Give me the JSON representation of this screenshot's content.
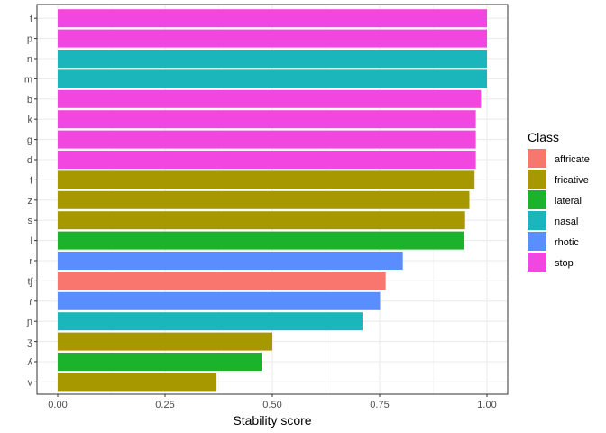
{
  "chart_data": {
    "type": "bar",
    "orientation": "horizontal",
    "xlabel": "Stability score",
    "ylabel": "",
    "xlim": [
      0,
      1
    ],
    "x_ticks": [
      0,
      0.25,
      0.5,
      0.75,
      1
    ],
    "x_tick_labels": [
      "0.00",
      "0.25",
      "0.50",
      "0.75",
      "1.00"
    ],
    "grid": true,
    "legend_position": "right",
    "legend": {
      "title": "Class",
      "entries": [
        {
          "name": "affricate",
          "color": "#F8766D"
        },
        {
          "name": "fricative",
          "color": "#A89800"
        },
        {
          "name": "lateral",
          "color": "#1BB22C"
        },
        {
          "name": "nasal",
          "color": "#1BB6BB"
        },
        {
          "name": "rhotic",
          "color": "#5A8DFF"
        },
        {
          "name": "stop",
          "color": "#F147E0"
        }
      ]
    },
    "bars": [
      {
        "label": "t",
        "value": 1.0,
        "class": "stop"
      },
      {
        "label": "p",
        "value": 1.0,
        "class": "stop"
      },
      {
        "label": "n",
        "value": 1.0,
        "class": "nasal"
      },
      {
        "label": "m",
        "value": 1.0,
        "class": "nasal"
      },
      {
        "label": "b",
        "value": 0.986,
        "class": "stop"
      },
      {
        "label": "k",
        "value": 0.974,
        "class": "stop"
      },
      {
        "label": "g",
        "value": 0.974,
        "class": "stop"
      },
      {
        "label": "d",
        "value": 0.974,
        "class": "stop"
      },
      {
        "label": "f",
        "value": 0.971,
        "class": "fricative"
      },
      {
        "label": "z",
        "value": 0.959,
        "class": "fricative"
      },
      {
        "label": "s",
        "value": 0.949,
        "class": "fricative"
      },
      {
        "label": "l",
        "value": 0.946,
        "class": "lateral"
      },
      {
        "label": "r",
        "value": 0.804,
        "class": "rhotic"
      },
      {
        "label": "tʃ",
        "value": 0.764,
        "class": "affricate"
      },
      {
        "label": "ɾ",
        "value": 0.751,
        "class": "rhotic"
      },
      {
        "label": "ɲ",
        "value": 0.71,
        "class": "nasal"
      },
      {
        "label": "ʒ",
        "value": 0.5,
        "class": "fricative"
      },
      {
        "label": "ʎ",
        "value": 0.475,
        "class": "lateral"
      },
      {
        "label": "v",
        "value": 0.37,
        "class": "fricative"
      }
    ]
  }
}
